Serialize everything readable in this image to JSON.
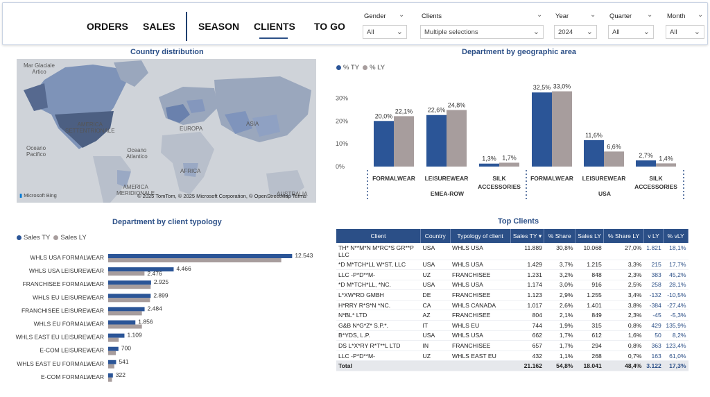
{
  "nav": {
    "orders": "ORDERS",
    "sales": "SALES",
    "season": "SEASON",
    "clients": "CLIENTS",
    "togo": "TO GO",
    "active": "CLIENTS"
  },
  "filters": [
    {
      "label": "Gender",
      "value": "All"
    },
    {
      "label": "Clients",
      "value": "Multiple selections"
    },
    {
      "label": "Year",
      "value": "2024"
    },
    {
      "label": "Quarter",
      "value": "All"
    },
    {
      "label": "Month",
      "value": "All"
    }
  ],
  "map_panel": {
    "title": "Country distribution",
    "labels": {
      "arctic": "Mar Glaciale\nArtico",
      "north_america": "AMERICA\nSETTENTRIONALE",
      "europe": "EUROPA",
      "asia": "ASIA",
      "africa": "AFRICA",
      "pacific": "Oceano\nPacifico",
      "atlantic": "Oceano\nAtlantico",
      "south_america": "AMERICA\nMERIDIONALE",
      "australia": "AUSTRALIA"
    },
    "logo": "Microsoft Bing",
    "credit": "© 2025 TomTom, © 2025 Microsoft Corporation, © OpenStreetMap Terms"
  },
  "dept_geo": {
    "title": "Department by geographic area",
    "legend": [
      "% TY",
      "% LY"
    ]
  },
  "dept_typology": {
    "title": "Department by client typology",
    "legend": [
      "Sales TY",
      "Sales LY"
    ]
  },
  "colors": {
    "ty": "#2b5597",
    "ly": "#a79d9d",
    "header": "#2b4f87"
  },
  "chart_data": [
    {
      "type": "bar",
      "title": "Department by geographic area",
      "categories": [
        "FORMALWEAR",
        "LEISUREWEAR",
        "SILK\nACCESSORIES",
        "FORMALWEAR",
        "LEISUREWEAR",
        "SILK\nACCESSORIES"
      ],
      "groups": [
        {
          "name": "EMEA-ROW",
          "count": 3
        },
        {
          "name": "USA",
          "count": 3
        }
      ],
      "series": [
        {
          "name": "% TY",
          "values": [
            20.0,
            22.6,
            1.3,
            32.5,
            11.6,
            2.7
          ],
          "labels": [
            "20,0%",
            "22,6%",
            "1,3%",
            "32,5%",
            "11,6%",
            "2,7%"
          ]
        },
        {
          "name": "% LY",
          "values": [
            22.1,
            24.8,
            1.7,
            33.0,
            6.6,
            1.4
          ],
          "labels": [
            "22,1%",
            "24,8%",
            "1,7%",
            "33,0%",
            "6,6%",
            "1,4%"
          ]
        }
      ],
      "yticks": [
        "0%",
        "10%",
        "20%",
        "30%"
      ],
      "ylim": [
        0,
        35
      ]
    },
    {
      "type": "bar",
      "orientation": "horizontal",
      "title": "Department by client typology",
      "categories": [
        "WHLS USA FORMALWEAR",
        "WHLS USA LEISUREWEAR",
        "FRANCHISEE FORMALWEAR",
        "WHLS EU LEISUREWEAR",
        "FRANCHISEE LEISUREWEAR",
        "WHLS EU FORMALWEAR",
        "WHLS EAST EU LEISUREWEAR",
        "E-COM LEISUREWEAR",
        "WHLS EAST EU FORMALWEAR",
        "E-COM FORMALWEAR"
      ],
      "series": [
        {
          "name": "Sales TY",
          "values": [
            12543,
            4466,
            2925,
            2899,
            2484,
            1856,
            1109,
            700,
            541,
            322
          ],
          "labels": [
            "12.543",
            "4.466",
            "2.925",
            "2.899",
            "2.484",
            "1.856",
            "1.109",
            "700",
            "541",
            "322"
          ]
        },
        {
          "name": "Sales LY",
          "values": [
            11800,
            2476,
            2900,
            2850,
            2300,
            2300,
            720,
            520,
            420,
            260
          ],
          "labels": [
            "",
            "2.476",
            "",
            "",
            "",
            "",
            "",
            "",
            "",
            ""
          ]
        }
      ],
      "xlim": [
        0,
        13000
      ]
    }
  ],
  "top_clients": {
    "title": "Top Clients",
    "columns": [
      "Client",
      "Country",
      "Typology of client",
      "Sales TY",
      "% Share",
      "Sales LY",
      "% Share LY",
      "v LY",
      "% vLY"
    ],
    "rows": [
      [
        "TH* N**M*N M*RC*S GR**P LLC",
        "USA",
        "WHLS USA",
        "11.889",
        "30,8%",
        "10.068",
        "27,0%",
        "1.821",
        "18,1%"
      ],
      [
        "*D M*TCH*LL W*ST, LLC",
        "USA",
        "WHLS USA",
        "1.429",
        "3,7%",
        "1.215",
        "3,3%",
        "215",
        "17,7%"
      ],
      [
        "LLC -P*D**M-",
        "UZ",
        "FRANCHISEE",
        "1.231",
        "3,2%",
        "848",
        "2,3%",
        "383",
        "45,2%"
      ],
      [
        "*D M*TCH*LL, *NC.",
        "USA",
        "WHLS USA",
        "1.174",
        "3,0%",
        "916",
        "2,5%",
        "258",
        "28,1%"
      ],
      [
        "L*XW*RD GMBH",
        "DE",
        "FRANCHISEE",
        "1.123",
        "2,9%",
        "1.255",
        "3,4%",
        "-132",
        "-10,5%"
      ],
      [
        "H*RRY R*S*N *NC.",
        "CA",
        "WHLS CANADA",
        "1.017",
        "2,6%",
        "1.401",
        "3,8%",
        "-384",
        "-27,4%"
      ],
      [
        "N*BL* LTD",
        "AZ",
        "FRANCHISEE",
        "804",
        "2,1%",
        "849",
        "2,3%",
        "-45",
        "-5,3%"
      ],
      [
        "G&B N*G*Z* S.P.*.",
        "IT",
        "WHLS EU",
        "744",
        "1,9%",
        "315",
        "0,8%",
        "429",
        "135,9%"
      ],
      [
        "B*YDS, L.P.",
        "USA",
        "WHLS USA",
        "662",
        "1,7%",
        "612",
        "1,6%",
        "50",
        "8,2%"
      ],
      [
        "DS L*X*RY R*T**L LTD",
        "IN",
        "FRANCHISEE",
        "657",
        "1,7%",
        "294",
        "0,8%",
        "363",
        "123,4%"
      ],
      [
        "LLC -P*D**M-",
        "UZ",
        "WHLS EAST EU",
        "432",
        "1,1%",
        "268",
        "0,7%",
        "163",
        "61,0%"
      ]
    ],
    "total": [
      "Total",
      "",
      "",
      "21.162",
      "54,8%",
      "18.041",
      "48,4%",
      "3.122",
      "17,3%"
    ]
  }
}
